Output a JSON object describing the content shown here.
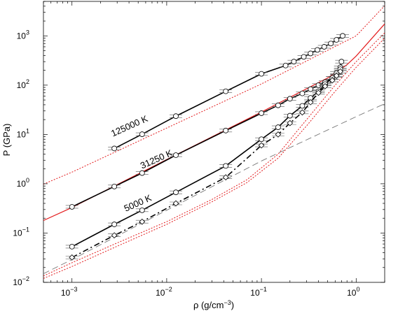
{
  "chart_data": {
    "type": "line",
    "title": "",
    "xlabel": "ρ (g/cm",
    "xlabel_sup": "−3",
    "xlabel_tail": ")",
    "ylabel": "P (GPa)",
    "x_scale": "log",
    "y_scale": "log",
    "xlim": [
      0.0005,
      2.0
    ],
    "ylim": [
      0.01,
      5000
    ],
    "grid": false,
    "legend": "none",
    "x_ticks": [
      {
        "value": 0.001,
        "base": "10",
        "exp": "−3"
      },
      {
        "value": 0.01,
        "base": "10",
        "exp": "−2"
      },
      {
        "value": 0.1,
        "base": "10",
        "exp": "−1"
      },
      {
        "value": 1,
        "base": "10",
        "exp": "0"
      }
    ],
    "y_ticks": [
      {
        "value": 0.01,
        "base": "10",
        "exp": "−2"
      },
      {
        "value": 0.1,
        "base": "10",
        "exp": "−1"
      },
      {
        "value": 1,
        "base": "10",
        "exp": "0"
      },
      {
        "value": 10,
        "base": "10",
        "exp": "1"
      },
      {
        "value": 100,
        "base": "10",
        "exp": "2"
      },
      {
        "value": 1000,
        "base": "10",
        "exp": "3"
      }
    ],
    "annotations": [
      {
        "text": "125000 K",
        "x": 0.0027,
        "y": 9.0
      },
      {
        "text": "31250 K",
        "x": 0.0055,
        "y": 2.0
      },
      {
        "text": "5000 K",
        "x": 0.0037,
        "y": 0.27
      }
    ],
    "colors": {
      "black": "#000000",
      "red": "#e31a1c",
      "gray": "#777777"
    },
    "series": [
      {
        "style": "red-dotted",
        "points": [
          [
            0.0005,
            0.98
          ],
          [
            0.001,
            1.72
          ],
          [
            0.01,
            13.5
          ],
          [
            0.1,
            106
          ],
          [
            1,
            1000
          ],
          [
            2,
            4100
          ]
        ]
      },
      {
        "style": "red-solid",
        "points": [
          [
            0.0005,
            0.18
          ],
          [
            0.001,
            0.33
          ],
          [
            0.01,
            3.1
          ],
          [
            0.1,
            28.5
          ],
          [
            0.5,
            140
          ],
          [
            0.8,
            260
          ],
          [
            1,
            390
          ],
          [
            2,
            1750
          ]
        ]
      },
      {
        "style": "red-dotted",
        "points": [
          [
            0.0005,
            0.0135
          ],
          [
            0.001,
            0.025
          ],
          [
            0.003,
            0.063
          ],
          [
            0.01,
            0.17
          ],
          [
            0.03,
            0.48
          ],
          [
            0.07,
            1.2
          ],
          [
            0.15,
            4.0
          ],
          [
            0.3,
            20
          ],
          [
            0.6,
            100
          ],
          [
            1,
            300
          ],
          [
            2,
            1150
          ]
        ]
      },
      {
        "style": "red-dotted",
        "points": [
          [
            0.0005,
            0.012
          ],
          [
            0.001,
            0.021
          ],
          [
            0.003,
            0.054
          ],
          [
            0.01,
            0.15
          ],
          [
            0.03,
            0.43
          ],
          [
            0.07,
            1.05
          ],
          [
            0.15,
            3.3
          ],
          [
            0.3,
            15
          ],
          [
            0.6,
            75
          ],
          [
            1,
            230
          ],
          [
            2,
            900
          ]
        ]
      },
      {
        "style": "gray-dashed",
        "points": [
          [
            0.0005,
            0.015
          ],
          [
            0.001,
            0.029
          ],
          [
            0.01,
            0.29
          ],
          [
            0.1,
            2.9
          ],
          [
            1,
            23
          ],
          [
            2,
            42
          ]
        ]
      },
      {
        "style": "black-solid",
        "marker": "circle",
        "points": [
          [
            0.0028,
            5.2
          ],
          [
            0.0055,
            10.1
          ],
          [
            0.0125,
            23.5
          ],
          [
            0.042,
            75
          ],
          [
            0.1,
            170
          ],
          [
            0.18,
            250
          ],
          [
            0.22,
            300
          ],
          [
            0.28,
            375
          ],
          [
            0.33,
            440
          ],
          [
            0.39,
            520
          ],
          [
            0.46,
            600
          ],
          [
            0.54,
            700
          ],
          [
            0.62,
            830
          ],
          [
            0.72,
            1000
          ]
        ]
      },
      {
        "style": "black-solid",
        "marker": "circle",
        "points": [
          [
            0.001,
            0.34
          ],
          [
            0.0028,
            0.88
          ],
          [
            0.0055,
            1.65
          ],
          [
            0.0125,
            3.8
          ],
          [
            0.042,
            12
          ],
          [
            0.1,
            27
          ],
          [
            0.15,
            39
          ],
          [
            0.2,
            53
          ],
          [
            0.27,
            68
          ],
          [
            0.33,
            83
          ],
          [
            0.4,
            100
          ],
          [
            0.47,
            115
          ],
          [
            0.56,
            140
          ],
          [
            0.62,
            160
          ],
          [
            0.68,
            230
          ],
          [
            0.7,
            300
          ]
        ]
      },
      {
        "style": "black-solid",
        "marker": "circle",
        "points": [
          [
            0.001,
            0.053
          ],
          [
            0.0028,
            0.15
          ],
          [
            0.0055,
            0.29
          ],
          [
            0.0125,
            0.67
          ],
          [
            0.042,
            2.3
          ],
          [
            0.1,
            8.0
          ],
          [
            0.15,
            14
          ],
          [
            0.2,
            24
          ],
          [
            0.27,
            38
          ],
          [
            0.33,
            55
          ],
          [
            0.4,
            75
          ],
          [
            0.47,
            105
          ],
          [
            0.56,
            140
          ],
          [
            0.62,
            175
          ],
          [
            0.68,
            210
          ]
        ]
      },
      {
        "style": "black-dashdot",
        "marker": "diamond",
        "points": [
          [
            0.001,
            0.032
          ],
          [
            0.0028,
            0.09
          ],
          [
            0.0055,
            0.17
          ],
          [
            0.0125,
            0.4
          ],
          [
            0.042,
            1.35
          ],
          [
            0.1,
            6.0
          ],
          [
            0.15,
            10
          ],
          [
            0.2,
            17
          ],
          [
            0.27,
            28
          ],
          [
            0.33,
            45
          ],
          [
            0.4,
            70
          ],
          [
            0.47,
            95
          ],
          [
            0.56,
            125
          ],
          [
            0.62,
            155
          ],
          [
            0.68,
            190
          ]
        ]
      }
    ]
  }
}
